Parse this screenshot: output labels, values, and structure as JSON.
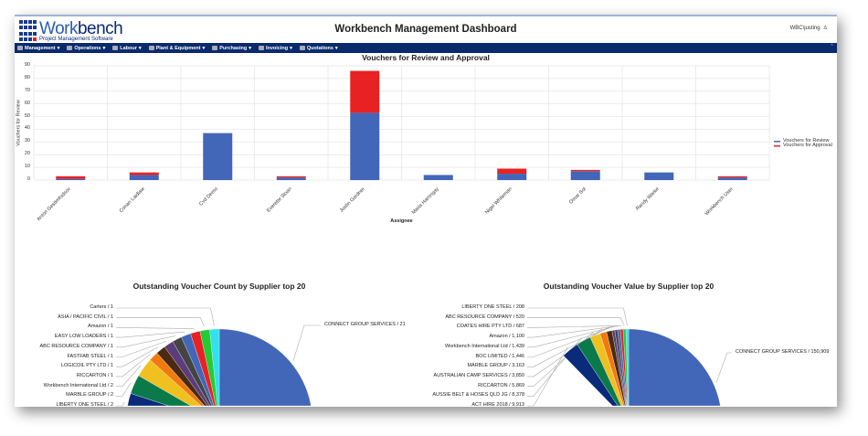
{
  "header": {
    "logo_main": "Work",
    "logo_bold": "bench",
    "logo_sub": "Project Management Software",
    "title": "Workbench Management Dashboard",
    "user": "WBC\\justing"
  },
  "nav": [
    {
      "label": "Management",
      "icon": "grid-icon"
    },
    {
      "label": "Operations",
      "icon": "gears-icon"
    },
    {
      "label": "Labour",
      "icon": "person-icon"
    },
    {
      "label": "Plant & Equipment",
      "icon": "truck-icon"
    },
    {
      "label": "Purchasing",
      "icon": "printer-icon"
    },
    {
      "label": "Invoicing",
      "icon": "dollar-icon"
    },
    {
      "label": "Quotations",
      "icon": "calculator-icon"
    }
  ],
  "chart_data": [
    {
      "type": "bar",
      "stacked": true,
      "title": "Vouchers for Review and Approval",
      "xlabel": "Assignee",
      "ylabel": "Vouchers for Review",
      "ylim": [
        0,
        90
      ],
      "yticks": [
        0,
        10,
        20,
        30,
        40,
        50,
        60,
        70,
        80,
        90
      ],
      "grid": true,
      "legend": "right",
      "categories": [
        "Anton Gestimfodsov",
        "Conan Laidlaw",
        "Cvd Demo",
        "Everette Sloan",
        "Justin Gardner",
        "Maria Harringay",
        "Nigel Whiteman",
        "Omar Sol",
        "Randy Warke",
        "Workbench User"
      ],
      "series": [
        {
          "name": "Vouchers for Review",
          "color": "#4266b8",
          "values": [
            1,
            4,
            37,
            2,
            53,
            4,
            5,
            7,
            6,
            2
          ]
        },
        {
          "name": "Vouchers for Approval",
          "color": "#e82222",
          "values": [
            2,
            2,
            0,
            1,
            33,
            0,
            4,
            1,
            0,
            1
          ]
        }
      ]
    },
    {
      "type": "pie",
      "title": "Outstanding Voucher Count by Supplier top 20",
      "main": {
        "label": "CONNECT GROUP SERVICES / 21",
        "value": 21,
        "color": "#4266b8"
      },
      "slices": [
        {
          "label": "Carters / 1",
          "value": 1
        },
        {
          "label": "ASIA / PACIFIC CIVIL / 1",
          "value": 1
        },
        {
          "label": "Amazon / 1",
          "value": 1
        },
        {
          "label": "EASY LOW LOADERS / 1",
          "value": 1
        },
        {
          "label": "ABC RESOURCE COMPANY / 1",
          "value": 1
        },
        {
          "label": "FASTFAB STEEL / 1",
          "value": 1
        },
        {
          "label": "LOGICOIL PTY LTD / 1",
          "value": 1
        },
        {
          "label": "RICCARTON / 1",
          "value": 1
        },
        {
          "label": "Workbench International Ltd / 2",
          "value": 2
        },
        {
          "label": "MARBLE GROUP / 2",
          "value": 2
        },
        {
          "label": "LIBERTY ONE STEEL / 2",
          "value": 2
        }
      ]
    },
    {
      "type": "pie",
      "title": "Outstanding Voucher Value by Supplier top 20",
      "main": {
        "label": "CONNECT GROUP SERVICES / 150,909",
        "value": 150909,
        "color": "#4266b8"
      },
      "slices": [
        {
          "label": "LIBERTY ONE STEEL / 208",
          "value": 208
        },
        {
          "label": "ABC RESOURCE COMPANY / 520",
          "value": 520
        },
        {
          "label": "COATES HIRE PTY LTD / 687",
          "value": 687
        },
        {
          "label": "Amazon / 1,100",
          "value": 1100
        },
        {
          "label": "Workbench International Ltd / 1,439",
          "value": 1439
        },
        {
          "label": "BOC LIMITED / 1,446",
          "value": 1446
        },
        {
          "label": "MARBLE GROUP / 3,163",
          "value": 3163
        },
        {
          "label": "AUSTRALIAN CAMP SERVICES / 3,850",
          "value": 3850
        },
        {
          "label": "RICCARTON / 5,869",
          "value": 5869
        },
        {
          "label": "AUSSIE BELT & HOSES QLD JG / 8,378",
          "value": 8378
        },
        {
          "label": "ACT HIRE 2018 / 9,913",
          "value": 9913
        }
      ]
    }
  ],
  "palette": [
    "#33e0f0",
    "#22cc33",
    "#e82222",
    "#4266b8",
    "#444444",
    "#5b3d7a",
    "#4a2a10",
    "#f07a10",
    "#f0c020",
    "#0a7a4a",
    "#0a2a7a",
    "#b01a2a",
    "#12a09a",
    "#d070a0",
    "#300030",
    "#c8a0f0",
    "#c89060",
    "#ff9900",
    "#f0f040"
  ]
}
